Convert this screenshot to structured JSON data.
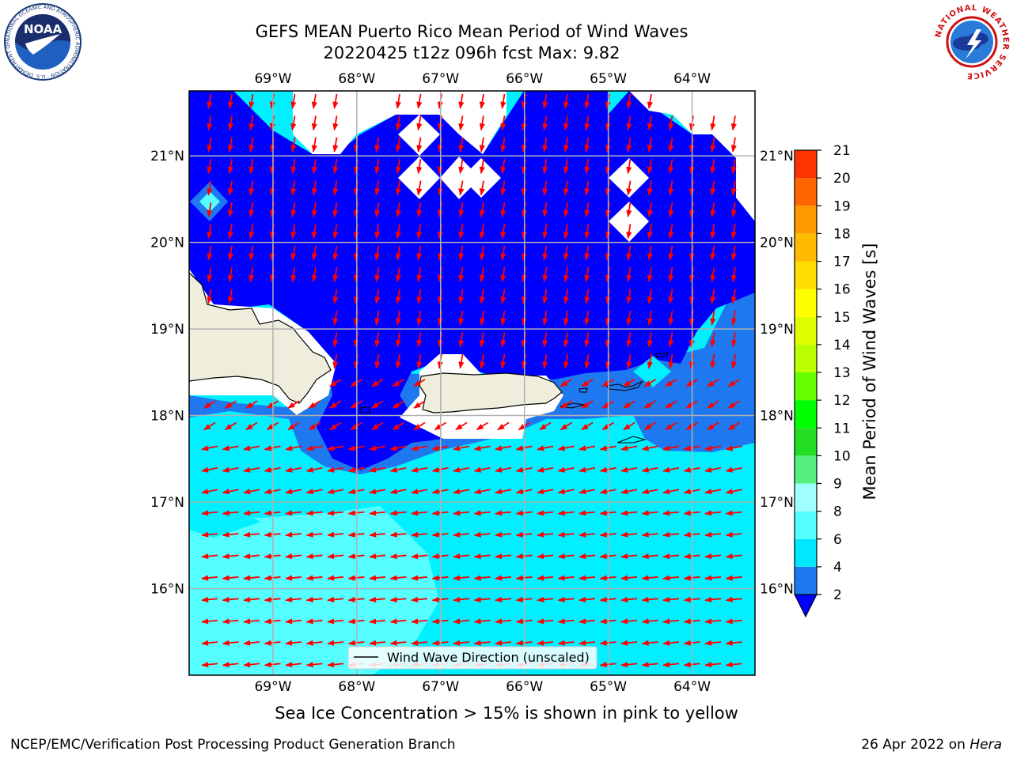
{
  "title": {
    "line1": "GEFS MEAN Puerto Rico Mean Period of Wind Waves",
    "line2": "20220425 t12z 096h fcst   Max: 9.82"
  },
  "map": {
    "lon_labels": [
      "69°W",
      "68°W",
      "67°W",
      "66°W",
      "65°W",
      "64°W"
    ],
    "lat_labels": [
      "21°N",
      "20°N",
      "19°N",
      "18°N",
      "17°N",
      "16°N"
    ],
    "lon_values": [
      -69,
      -68,
      -67,
      -66,
      -65,
      -64
    ],
    "lat_values": [
      21,
      20,
      19,
      18,
      17,
      16
    ],
    "extent": {
      "lon_min": -70,
      "lon_max": -63.25,
      "lat_min": 15,
      "lat_max": 21.75
    },
    "legend_label": "Wind Wave Direction (unscaled)",
    "colors": {
      "period_2_4": "#0000ff",
      "period_4_6": "#1e78f0",
      "period_6_8": "#00f0ff",
      "period_8_9": "#55ffff",
      "land": "#efeddc",
      "arrow": "#ff0000"
    }
  },
  "colorbar": {
    "label": "Mean Period of Wind Waves [s]",
    "ticks": [
      "2",
      "4",
      "6",
      "8",
      "9",
      "10",
      "11",
      "12",
      "13",
      "14",
      "15",
      "16",
      "17",
      "18",
      "19",
      "20",
      "21"
    ],
    "colors": [
      "#1e78f0",
      "#00e8ff",
      "#55ffff",
      "#a0ffff",
      "#55f080",
      "#22dd22",
      "#00ff00",
      "#66ff00",
      "#bbff00",
      "#ddff00",
      "#ffff00",
      "#ffdd00",
      "#ffbb00",
      "#ff9900",
      "#ff6600",
      "#ff3300",
      "#ff0000"
    ],
    "extend_color": "#0000ff"
  },
  "subtitle": "Sea Ice Concentration > 15% is shown in pink to yellow",
  "footer": {
    "left": "NCEP/EMC/Verification Post Processing Product Generation Branch",
    "right_date": "26 Apr 2022 on ",
    "right_host": "Hera"
  },
  "logos": {
    "noaa_text": "NOAA",
    "noaa_ring": "NATIONAL OCEANIC AND ATMOSPHERIC ADMINISTRATION · U.S. DEPARTMENT OF COMMERCE",
    "nws_ring": "NATIONAL WEATHER SERVICE"
  }
}
